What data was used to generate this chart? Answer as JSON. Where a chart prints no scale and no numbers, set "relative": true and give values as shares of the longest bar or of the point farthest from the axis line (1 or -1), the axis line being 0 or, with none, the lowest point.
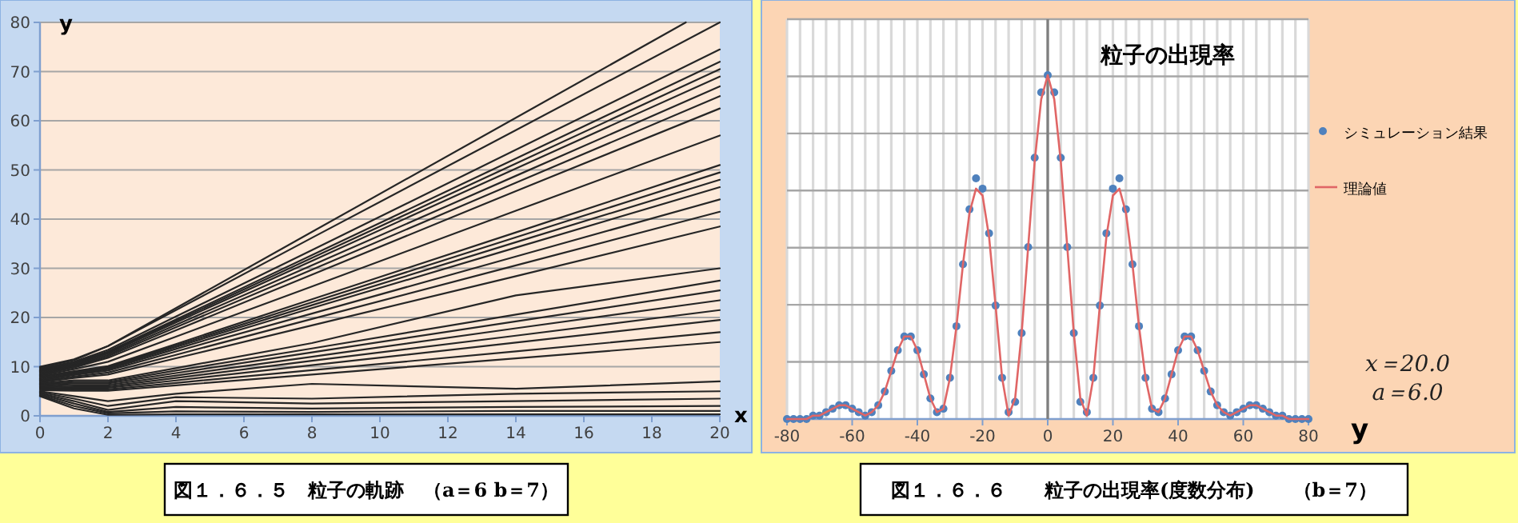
{
  "chart_data": [
    {
      "type": "line",
      "xlabel": "x",
      "ylabel": "y",
      "xlim": [
        0,
        20
      ],
      "xticks": [
        0,
        2,
        4,
        6,
        8,
        10,
        12,
        14,
        16,
        18,
        20
      ],
      "ylim": [
        0,
        80
      ],
      "yticks": [
        0,
        10,
        20,
        30,
        40,
        50,
        60,
        70,
        80
      ],
      "grid": "y",
      "x": [
        0,
        1,
        2,
        4,
        8,
        14,
        20
      ],
      "annotations": [
        "図１．６．５　粒子の軌跡　（a＝6 b＝7）"
      ],
      "series": [
        {
          "color": "#262626",
          "x": [
            0,
            1,
            2,
            4,
            8,
            14,
            19
          ],
          "values": [
            10,
            11.5,
            14.2,
            21.9,
            37.4,
            60.6,
            80
          ]
        },
        {
          "color": "#262626",
          "values": [
            9.8,
            11.3,
            14.2,
            21.5,
            36.2,
            58.1,
            80
          ]
        },
        {
          "color": "#262626",
          "values": [
            9.6,
            11,
            13.4,
            20.2,
            33.7,
            54.1,
            74.5
          ]
        },
        {
          "color": "#262626",
          "values": [
            9.4,
            10.8,
            13.1,
            19.6,
            32.7,
            52.3,
            72
          ]
        },
        {
          "color": "#262626",
          "values": [
            9.2,
            10.6,
            12.9,
            19.3,
            32.1,
            51.3,
            70.5
          ]
        },
        {
          "color": "#262626",
          "values": [
            9,
            10.4,
            12.7,
            19,
            31.5,
            50.3,
            69
          ]
        },
        {
          "color": "#262626",
          "values": [
            8.8,
            10.2,
            12.4,
            18.5,
            30.6,
            48.8,
            67
          ]
        },
        {
          "color": "#262626",
          "values": [
            8.6,
            10,
            12.1,
            18,
            29.7,
            47.4,
            65
          ]
        },
        {
          "color": "#262626",
          "values": [
            8.4,
            9.8,
            11.8,
            17.4,
            28.7,
            45.7,
            62.5
          ]
        },
        {
          "color": "#262626",
          "values": [
            8.2,
            9.5,
            11,
            16.1,
            26.3,
            41.7,
            57
          ]
        },
        {
          "color": "#262626",
          "values": [
            8,
            9.1,
            10.1,
            14.6,
            23.7,
            37.3,
            51
          ]
        },
        {
          "color": "#262626",
          "values": [
            7.8,
            8.9,
            9.9,
            14.3,
            23.1,
            36.3,
            49.5
          ]
        },
        {
          "color": "#262626",
          "values": [
            7.6,
            8.7,
            9.7,
            14,
            22.5,
            35.3,
            48
          ]
        },
        {
          "color": "#262626",
          "values": [
            7.4,
            8.5,
            9.5,
            13.6,
            21.9,
            34.2,
            46.5
          ]
        },
        {
          "color": "#262626",
          "values": [
            7.2,
            8.3,
            9.2,
            13.1,
            20.8,
            32.4,
            44
          ]
        },
        {
          "color": "#262626",
          "values": [
            7,
            8,
            8.8,
            12.4,
            19.7,
            30.6,
            41.5
          ]
        },
        {
          "color": "#262626",
          "values": [
            6.8,
            7.7,
            8.4,
            11.7,
            18.4,
            28.4,
            38.5
          ]
        },
        {
          "color": "#262626",
          "values": [
            6.6,
            7.2,
            7.2,
            9.7,
            14.8,
            24.5,
            30
          ]
        },
        {
          "color": "#262626",
          "values": [
            6.4,
            6.9,
            6.9,
            9.2,
            13.7,
            20.6,
            27.5
          ]
        },
        {
          "color": "#262626",
          "values": [
            6.2,
            6.6,
            6.6,
            8.7,
            12.9,
            19.2,
            25.5
          ]
        },
        {
          "color": "#262626",
          "values": [
            6,
            6.3,
            6.3,
            8.2,
            12,
            17.8,
            23.5
          ]
        },
        {
          "color": "#262626",
          "values": [
            5.8,
            6,
            6,
            7.7,
            11.2,
            16.3,
            21.5
          ]
        },
        {
          "color": "#262626",
          "values": [
            5.6,
            5.7,
            5.7,
            7.2,
            10.3,
            14.9,
            19.5
          ]
        },
        {
          "color": "#262626",
          "values": [
            5.4,
            5.4,
            5.4,
            6.7,
            9.3,
            13.1,
            17
          ]
        },
        {
          "color": "#262626",
          "values": [
            5.2,
            5.1,
            5.1,
            6.2,
            8.4,
            11.7,
            15
          ]
        },
        {
          "color": "#262626",
          "values": [
            5,
            4,
            3,
            4.5,
            6.5,
            5.5,
            7
          ]
        },
        {
          "color": "#262626",
          "values": [
            4.8,
            3.5,
            2,
            3.8,
            3.5,
            4.5,
            5
          ]
        },
        {
          "color": "#262626",
          "values": [
            4.6,
            3,
            1.2,
            3,
            2.5,
            3,
            3.5
          ]
        },
        {
          "color": "#262626",
          "values": [
            4.4,
            2.5,
            0.8,
            1.8,
            1.5,
            1.8,
            2
          ]
        },
        {
          "color": "#262626",
          "values": [
            4.2,
            2,
            0.5,
            0.9,
            0.8,
            1,
            1
          ]
        },
        {
          "color": "#262626",
          "values": [
            4,
            1.5,
            0.2,
            0.3,
            0.3,
            0.3,
            0.3
          ]
        }
      ]
    },
    {
      "type": "scatter",
      "title": "粒子の出現率",
      "xlabel": "y",
      "relative": true,
      "xlim": [
        -80,
        80
      ],
      "xticks": [
        -80,
        -60,
        -40,
        -20,
        0,
        20,
        40,
        60,
        80
      ],
      "grid": true,
      "legend": "right",
      "x": [
        -80,
        -78,
        -76,
        -74,
        -72,
        -70,
        -68,
        -66,
        -64,
        -62,
        -60,
        -58,
        -56,
        -54,
        -52,
        -50,
        -48,
        -46,
        -44,
        -42,
        -40,
        -38,
        -36,
        -34,
        -32,
        -30,
        -28,
        -26,
        -24,
        -22,
        -20,
        -18,
        -16,
        -14,
        -12,
        -10,
        -8,
        -6,
        -4,
        -2,
        0,
        2,
        4,
        6,
        8,
        10,
        12,
        14,
        16,
        18,
        20,
        22,
        24,
        26,
        28,
        30,
        32,
        34,
        36,
        38,
        40,
        42,
        44,
        46,
        48,
        50,
        52,
        54,
        56,
        58,
        60,
        62,
        64,
        66,
        68,
        70,
        72,
        74,
        76,
        78,
        80
      ],
      "annotations": [
        "x＝20.0",
        "a＝6.0",
        "図１．６．６　　粒子の出現率(度数分布)　　（b＝7）"
      ],
      "series": [
        {
          "name": "シミュレーション結果",
          "type": "scatter",
          "marker": "circle",
          "color": "#4f81bd",
          "values": [
            0,
            0,
            0,
            0,
            0.01,
            0.01,
            0.02,
            0.03,
            0.04,
            0.04,
            0.03,
            0.02,
            0.01,
            0.02,
            0.04,
            0.08,
            0.14,
            0.2,
            0.24,
            0.24,
            0.2,
            0.13,
            0.06,
            0.02,
            0.03,
            0.12,
            0.27,
            0.45,
            0.61,
            0.7,
            0.67,
            0.54,
            0.33,
            0.12,
            0.02,
            0.05,
            0.25,
            0.5,
            0.76,
            0.95,
            1.0,
            0.95,
            0.76,
            0.5,
            0.25,
            0.05,
            0.02,
            0.12,
            0.33,
            0.54,
            0.67,
            0.7,
            0.61,
            0.45,
            0.27,
            0.12,
            0.03,
            0.02,
            0.06,
            0.13,
            0.2,
            0.24,
            0.24,
            0.2,
            0.14,
            0.08,
            0.04,
            0.02,
            0.01,
            0.02,
            0.03,
            0.04,
            0.04,
            0.03,
            0.02,
            0.01,
            0.01,
            0,
            0,
            0,
            0
          ]
        },
        {
          "name": "理論値",
          "type": "line",
          "color": "#e06666",
          "values": [
            0,
            0,
            0,
            0,
            0.01,
            0.01,
            0.02,
            0.03,
            0.04,
            0.04,
            0.03,
            0.02,
            0.01,
            0.02,
            0.04,
            0.08,
            0.14,
            0.2,
            0.24,
            0.24,
            0.2,
            0.13,
            0.06,
            0.02,
            0.03,
            0.12,
            0.27,
            0.45,
            0.6,
            0.67,
            0.65,
            0.53,
            0.33,
            0.12,
            0.01,
            0.06,
            0.25,
            0.5,
            0.75,
            0.93,
            1.0,
            0.93,
            0.75,
            0.5,
            0.25,
            0.06,
            0.01,
            0.12,
            0.33,
            0.53,
            0.65,
            0.67,
            0.6,
            0.45,
            0.27,
            0.12,
            0.03,
            0.02,
            0.06,
            0.13,
            0.2,
            0.24,
            0.24,
            0.2,
            0.14,
            0.08,
            0.04,
            0.02,
            0.01,
            0.02,
            0.03,
            0.04,
            0.04,
            0.03,
            0.02,
            0.01,
            0.01,
            0,
            0,
            0,
            0
          ]
        }
      ]
    }
  ]
}
